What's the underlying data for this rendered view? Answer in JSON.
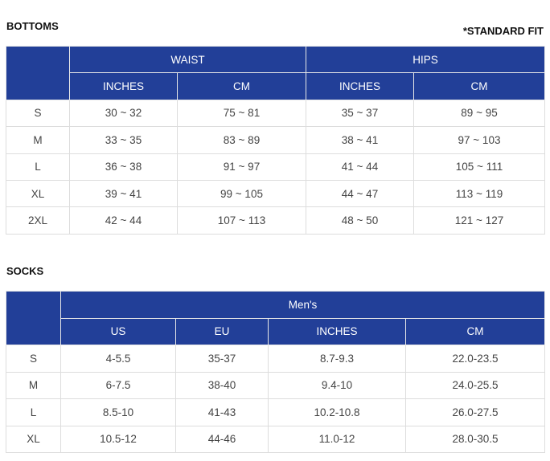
{
  "bottoms": {
    "title": "BOTTOMS",
    "fit_note": "*STANDARD FIT",
    "groups": [
      "WAIST",
      "HIPS"
    ],
    "subheaders": [
      "INCHES",
      "CM",
      "INCHES",
      "CM"
    ],
    "rows": [
      [
        "S",
        "30 ~ 32",
        "75 ~ 81",
        "35 ~ 37",
        "89 ~ 95"
      ],
      [
        "M",
        "33 ~ 35",
        "83 ~ 89",
        "38 ~ 41",
        "97 ~ 103"
      ],
      [
        "L",
        "36 ~ 38",
        "91 ~ 97",
        "41 ~ 44",
        "105 ~ 111"
      ],
      [
        "XL",
        "39 ~ 41",
        "99 ~ 105",
        "44 ~ 47",
        "113 ~ 119"
      ],
      [
        "2XL",
        "42 ~ 44",
        "107 ~ 113",
        "48 ~ 50",
        "121 ~ 127"
      ]
    ]
  },
  "socks": {
    "title": "SOCKS",
    "group": "Men's",
    "subheaders": [
      "US",
      "EU",
      "INCHES",
      "CM"
    ],
    "rows": [
      [
        "S",
        "4-5.5",
        "35-37",
        "8.7-9.3",
        "22.0-23.5"
      ],
      [
        "M",
        "6-7.5",
        "38-40",
        "9.4-10",
        "24.0-25.5"
      ],
      [
        "L",
        "8.5-10",
        "41-43",
        "10.2-10.8",
        "26.0-27.5"
      ],
      [
        "XL",
        "10.5-12",
        "44-46",
        "11.0-12",
        "28.0-30.5"
      ]
    ]
  },
  "colors": {
    "header_bg": "#223f98"
  }
}
